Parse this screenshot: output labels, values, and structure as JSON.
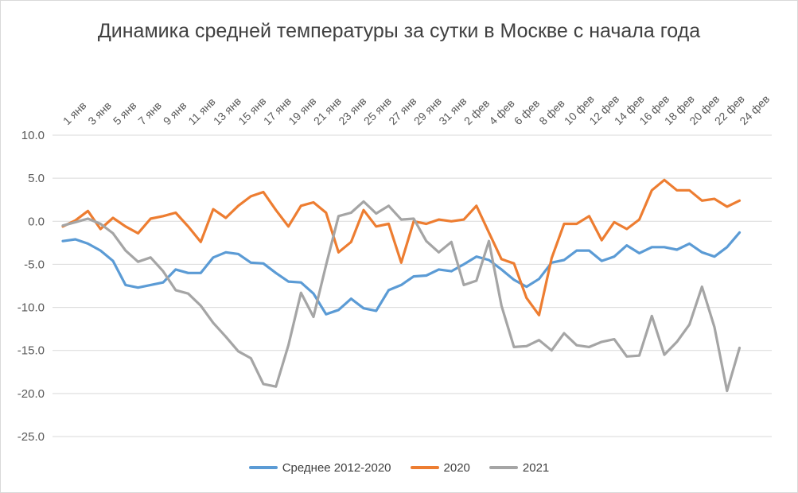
{
  "chart_data": {
    "type": "line",
    "title": "Динамика средней температуры за сутки в Москве с начала года",
    "xlabel": "",
    "ylabel": "",
    "ylim": [
      -25,
      10
    ],
    "yticks": [
      "10.0",
      "5.0",
      "0.0",
      "-5.0",
      "-10.0",
      "-15.0",
      "-20.0",
      "-25.0"
    ],
    "x_tick_labels": [
      "1 янв",
      "3 янв",
      "5 янв",
      "7 янв",
      "9 янв",
      "11 янв",
      "13 янв",
      "15 янв",
      "17 янв",
      "19 янв",
      "21 янв",
      "23 янв",
      "25 янв",
      "27 янв",
      "29 янв",
      "31 янв",
      "2 фев",
      "4 фев",
      "6 фев",
      "8 фев",
      "10 фев",
      "12 фев",
      "14 фев",
      "16 фев",
      "18 фев",
      "20 фев",
      "22 фев",
      "24 фев"
    ],
    "grid": "horizontal",
    "legend_position": "bottom",
    "series": [
      {
        "name": "Среднее 2012-2020",
        "color": "#5b9bd5",
        "values": [
          -2.3,
          -2.1,
          -2.6,
          -3.4,
          -4.6,
          -7.4,
          -7.7,
          -7.4,
          -7.1,
          -5.6,
          -6.0,
          -6.0,
          -4.2,
          -3.6,
          -3.8,
          -4.8,
          -4.9,
          -6.0,
          -7.0,
          -7.1,
          -8.4,
          -10.8,
          -10.3,
          -9.0,
          -10.1,
          -10.4,
          -8.0,
          -7.4,
          -6.4,
          -6.3,
          -5.6,
          -5.8,
          -5.0,
          -4.1,
          -4.5,
          -5.6,
          -6.8,
          -7.6,
          -6.7,
          -4.8,
          -4.5,
          -3.4,
          -3.4,
          -4.6,
          -4.1,
          -2.8,
          -3.7,
          -3.0,
          -3.0,
          -3.3,
          -2.6,
          -3.6,
          -4.1,
          -3.0,
          -1.3
        ]
      },
      {
        "name": "2020",
        "color": "#ed7d31",
        "values": [
          -0.6,
          0.1,
          1.2,
          -0.9,
          0.4,
          -0.6,
          -1.4,
          0.3,
          0.6,
          1.0,
          -0.6,
          -2.4,
          1.4,
          0.4,
          1.8,
          2.9,
          3.4,
          1.3,
          -0.6,
          1.8,
          2.2,
          1.0,
          -3.6,
          -2.4,
          1.3,
          -0.6,
          -0.3,
          -4.8,
          0.0,
          -0.3,
          0.2,
          0.0,
          0.2,
          1.8,
          -1.3,
          -4.4,
          -4.9,
          -8.9,
          -10.9,
          -4.3,
          -0.3,
          -0.3,
          0.6,
          -2.2,
          -0.1,
          -0.9,
          0.2,
          3.6,
          4.8,
          3.6,
          3.6,
          2.4,
          2.6,
          1.7,
          2.4
        ]
      },
      {
        "name": "2021",
        "color": "#a5a5a5",
        "values": [
          -0.5,
          -0.1,
          0.3,
          -0.3,
          -1.4,
          -3.4,
          -4.7,
          -4.2,
          -5.8,
          -8.0,
          -8.4,
          -9.8,
          -11.8,
          -13.4,
          -15.1,
          -15.9,
          -18.9,
          -19.2,
          -14.4,
          -8.3,
          -11.1,
          -5.1,
          0.6,
          1.0,
          2.3,
          0.9,
          1.8,
          0.2,
          0.3,
          -2.3,
          -3.6,
          -2.4,
          -7.4,
          -6.9,
          -2.3,
          -9.8,
          -14.6,
          -14.5,
          -13.8,
          -15.0,
          -13.0,
          -14.4,
          -14.6,
          -14.0,
          -13.7,
          -15.7,
          -15.6,
          -11.0,
          -15.5,
          -14.0,
          -12.0,
          -7.6,
          -12.3,
          -19.7,
          -14.7
        ]
      }
    ]
  }
}
